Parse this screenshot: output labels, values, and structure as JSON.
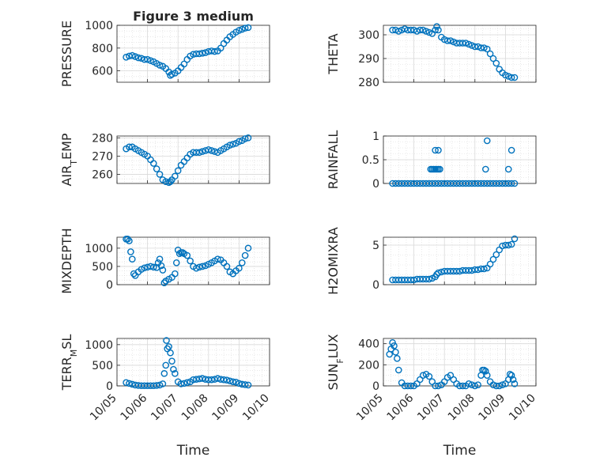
{
  "title": "Figure 3 medium",
  "x_axis_label": "Time",
  "chart_data": [
    {
      "type": "scatter",
      "ylabel": "PRESSURE",
      "title": "Figure 3 medium",
      "xlim": [
        "10/05",
        "10/10"
      ],
      "ylim": [
        500,
        1000
      ],
      "yticks": [
        600,
        800,
        1000
      ],
      "grid": true,
      "marker": "open-circle",
      "color": "#0072BD",
      "series": [
        {
          "x": [
            5.3,
            5.4,
            5.5,
            5.6,
            5.7,
            5.8,
            5.9,
            6.0,
            6.1,
            6.2,
            6.3,
            6.4,
            6.5,
            6.6,
            6.7,
            6.75,
            6.8,
            6.9,
            7.0,
            7.1,
            7.2,
            7.3,
            7.4,
            7.5,
            7.6,
            7.7,
            7.8,
            7.9,
            8.0,
            8.1,
            8.2,
            8.3,
            8.4,
            8.5,
            8.6,
            8.7,
            8.8,
            8.9,
            9.0,
            9.1,
            9.2,
            9.3
          ],
          "y": [
            720,
            730,
            735,
            725,
            715,
            710,
            700,
            700,
            690,
            680,
            665,
            650,
            640,
            620,
            590,
            560,
            570,
            580,
            600,
            630,
            660,
            700,
            730,
            745,
            750,
            750,
            755,
            760,
            770,
            775,
            770,
            775,
            800,
            840,
            870,
            900,
            920,
            940,
            955,
            965,
            975,
            980
          ]
        }
      ]
    },
    {
      "type": "scatter",
      "ylabel": "THETA",
      "xlim": [
        "10/05",
        "10/10"
      ],
      "ylim": [
        280,
        304
      ],
      "yticks": [
        280,
        290,
        300
      ],
      "grid": true,
      "marker": "open-circle",
      "color": "#0072BD",
      "series": [
        {
          "x": [
            5.3,
            5.4,
            5.5,
            5.6,
            5.7,
            5.8,
            5.9,
            6.0,
            6.1,
            6.2,
            6.3,
            6.4,
            6.5,
            6.6,
            6.7,
            6.75,
            6.8,
            6.9,
            7.0,
            7.1,
            7.2,
            7.3,
            7.4,
            7.5,
            7.6,
            7.7,
            7.8,
            7.9,
            8.0,
            8.1,
            8.2,
            8.3,
            8.4,
            8.5,
            8.6,
            8.7,
            8.8,
            8.9,
            9.0,
            9.1,
            9.2,
            9.3
          ],
          "y": [
            302,
            302,
            301.5,
            302,
            302.5,
            302,
            302,
            302,
            301.5,
            302,
            302,
            301.5,
            301,
            300.5,
            302,
            303.5,
            302,
            299,
            298,
            297.5,
            297.5,
            297,
            296.5,
            296.5,
            296.5,
            296.5,
            296,
            295.5,
            295,
            295,
            294.5,
            294.5,
            294,
            292,
            290,
            288,
            285.5,
            284,
            283,
            282.5,
            282,
            282
          ]
        }
      ]
    },
    {
      "type": "scatter",
      "ylabel": "AIR_TEMP",
      "xlim": [
        "10/05",
        "10/10"
      ],
      "ylim": [
        255,
        281
      ],
      "yticks": [
        260,
        270,
        280
      ],
      "grid": true,
      "marker": "open-circle",
      "color": "#0072BD",
      "series": [
        {
          "x": [
            5.3,
            5.4,
            5.5,
            5.6,
            5.7,
            5.8,
            5.9,
            6.0,
            6.1,
            6.2,
            6.3,
            6.4,
            6.5,
            6.6,
            6.7,
            6.75,
            6.8,
            6.9,
            7.0,
            7.1,
            7.2,
            7.3,
            7.4,
            7.5,
            7.6,
            7.7,
            7.8,
            7.9,
            8.0,
            8.1,
            8.2,
            8.3,
            8.4,
            8.5,
            8.6,
            8.7,
            8.8,
            8.9,
            9.0,
            9.1,
            9.2,
            9.3
          ],
          "y": [
            274,
            275,
            275,
            274,
            273,
            272,
            271,
            270,
            268,
            266,
            263,
            260,
            257,
            256,
            255.5,
            256,
            257,
            259,
            262,
            265,
            267,
            269,
            271,
            272,
            272,
            272,
            272.5,
            273,
            273.5,
            273,
            272.5,
            272,
            273,
            274,
            275,
            276,
            276.5,
            277,
            278,
            278.5,
            279.5,
            280
          ]
        }
      ]
    },
    {
      "type": "scatter",
      "ylabel": "RAINFALL",
      "xlim": [
        "10/05",
        "10/10"
      ],
      "ylim": [
        0,
        1
      ],
      "yticks": [
        0,
        0.5,
        1
      ],
      "grid": true,
      "marker": "open-circle",
      "color": "#0072BD",
      "series": [
        {
          "x": [
            5.3,
            5.4,
            5.5,
            5.6,
            5.7,
            5.8,
            5.9,
            6.0,
            6.1,
            6.2,
            6.3,
            6.4,
            6.5,
            6.6,
            6.7,
            6.8,
            6.9,
            7.0,
            7.1,
            7.2,
            7.3,
            7.4,
            7.5,
            7.6,
            7.7,
            7.8,
            7.9,
            8.0,
            8.1,
            8.2,
            8.3,
            8.4,
            8.5,
            8.6,
            8.7,
            8.8,
            8.9,
            9.0,
            9.1,
            9.2,
            9.3,
            6.55,
            6.6,
            6.65,
            6.7,
            6.75,
            6.8,
            6.85,
            6.7,
            6.8,
            8.35,
            8.4,
            9.1,
            9.2
          ],
          "y": [
            0,
            0,
            0,
            0,
            0,
            0,
            0,
            0,
            0,
            0,
            0,
            0,
            0,
            0,
            0,
            0,
            0,
            0,
            0,
            0,
            0,
            0,
            0,
            0,
            0,
            0,
            0,
            0,
            0,
            0,
            0,
            0,
            0,
            0,
            0,
            0,
            0,
            0,
            0,
            0,
            0,
            0.3,
            0.3,
            0.3,
            0.3,
            0.3,
            0.3,
            0.3,
            0.7,
            0.7,
            0.3,
            0.9,
            0.3,
            0.7
          ]
        }
      ]
    },
    {
      "type": "scatter",
      "ylabel": "MIXDEPTH",
      "xlim": [
        "10/05",
        "10/10"
      ],
      "ylim": [
        0,
        1300
      ],
      "yticks": [
        0,
        500,
        1000
      ],
      "grid": true,
      "marker": "open-circle",
      "color": "#0072BD",
      "series": [
        {
          "x": [
            5.3,
            5.35,
            5.4,
            5.45,
            5.5,
            5.55,
            5.6,
            5.7,
            5.8,
            5.9,
            6.0,
            6.1,
            6.2,
            6.3,
            6.35,
            6.4,
            6.45,
            6.5,
            6.55,
            6.6,
            6.7,
            6.8,
            6.9,
            6.95,
            7.0,
            7.05,
            7.1,
            7.15,
            7.2,
            7.3,
            7.4,
            7.5,
            7.6,
            7.7,
            7.8,
            7.9,
            8.0,
            8.1,
            8.2,
            8.3,
            8.4,
            8.5,
            8.6,
            8.7,
            8.8,
            8.9,
            9.0,
            9.1,
            9.2,
            9.3
          ],
          "y": [
            1250,
            1250,
            1200,
            900,
            700,
            300,
            250,
            350,
            420,
            460,
            480,
            500,
            480,
            470,
            600,
            700,
            520,
            400,
            50,
            100,
            150,
            200,
            300,
            600,
            950,
            850,
            880,
            880,
            850,
            800,
            650,
            500,
            450,
            480,
            500,
            520,
            560,
            600,
            650,
            700,
            680,
            600,
            500,
            350,
            300,
            380,
            450,
            600,
            800,
            1000
          ]
        }
      ]
    },
    {
      "type": "scatter",
      "ylabel": "H2OMIXRA",
      "xlim": [
        "10/05",
        "10/10"
      ],
      "ylim": [
        0,
        6
      ],
      "yticks": [
        0,
        5
      ],
      "grid": true,
      "marker": "open-circle",
      "color": "#0072BD",
      "series": [
        {
          "x": [
            5.3,
            5.4,
            5.5,
            5.6,
            5.7,
            5.8,
            5.9,
            6.0,
            6.1,
            6.2,
            6.3,
            6.4,
            6.5,
            6.6,
            6.7,
            6.75,
            6.8,
            6.9,
            7.0,
            7.1,
            7.2,
            7.3,
            7.4,
            7.5,
            7.6,
            7.7,
            7.8,
            7.9,
            8.0,
            8.1,
            8.2,
            8.3,
            8.4,
            8.5,
            8.6,
            8.7,
            8.8,
            8.9,
            9.0,
            9.1,
            9.2,
            9.3
          ],
          "y": [
            0.6,
            0.6,
            0.6,
            0.6,
            0.6,
            0.6,
            0.6,
            0.6,
            0.7,
            0.7,
            0.7,
            0.7,
            0.7,
            0.8,
            1.0,
            1.3,
            1.5,
            1.6,
            1.7,
            1.7,
            1.7,
            1.7,
            1.7,
            1.7,
            1.8,
            1.8,
            1.8,
            1.8,
            1.9,
            1.9,
            2.0,
            2.0,
            2.1,
            2.6,
            3.2,
            3.8,
            4.4,
            4.9,
            5.0,
            5.0,
            5.1,
            5.8
          ]
        }
      ]
    },
    {
      "type": "scatter",
      "ylabel": "TERR_MSL",
      "xlim": [
        "10/05",
        "10/10"
      ],
      "ylim": [
        0,
        1150
      ],
      "yticks": [
        0,
        500,
        1000
      ],
      "grid": true,
      "marker": "open-circle",
      "color": "#0072BD",
      "series": [
        {
          "x": [
            5.3,
            5.4,
            5.5,
            5.6,
            5.7,
            5.8,
            5.9,
            6.0,
            6.1,
            6.2,
            6.3,
            6.4,
            6.5,
            6.55,
            6.6,
            6.62,
            6.65,
            6.7,
            6.75,
            6.8,
            6.85,
            6.9,
            7.0,
            7.1,
            7.2,
            7.3,
            7.4,
            7.5,
            7.6,
            7.7,
            7.8,
            7.9,
            8.0,
            8.1,
            8.2,
            8.3,
            8.4,
            8.5,
            8.6,
            8.7,
            8.8,
            8.9,
            9.0,
            9.1,
            9.2,
            9.3
          ],
          "y": [
            80,
            60,
            40,
            20,
            10,
            5,
            5,
            5,
            5,
            5,
            10,
            20,
            50,
            300,
            500,
            1100,
            900,
            950,
            800,
            600,
            400,
            300,
            100,
            50,
            60,
            80,
            100,
            150,
            160,
            170,
            180,
            160,
            150,
            150,
            160,
            180,
            160,
            150,
            140,
            120,
            100,
            90,
            60,
            40,
            30,
            20
          ]
        }
      ]
    },
    {
      "type": "scatter",
      "ylabel": "SUN_FLUX",
      "xlim": [
        "10/05",
        "10/10"
      ],
      "ylim": [
        0,
        450
      ],
      "yticks": [
        0,
        200,
        400
      ],
      "grid": true,
      "marker": "open-circle",
      "color": "#0072BD",
      "series": [
        {
          "x": [
            5.2,
            5.25,
            5.3,
            5.35,
            5.4,
            5.45,
            5.5,
            5.6,
            5.7,
            5.8,
            5.9,
            6.0,
            6.1,
            6.2,
            6.3,
            6.4,
            6.5,
            6.6,
            6.7,
            6.8,
            6.9,
            7.0,
            7.1,
            7.2,
            7.3,
            7.4,
            7.5,
            7.6,
            7.7,
            7.8,
            7.9,
            8.0,
            8.1,
            8.2,
            8.25,
            8.3,
            8.35,
            8.4,
            8.5,
            8.6,
            8.7,
            8.8,
            8.9,
            9.0,
            9.1,
            9.15,
            9.2,
            9.25,
            9.3
          ],
          "y": [
            300,
            350,
            410,
            380,
            320,
            260,
            150,
            30,
            0,
            0,
            0,
            0,
            20,
            60,
            100,
            110,
            90,
            40,
            0,
            0,
            10,
            40,
            80,
            100,
            60,
            20,
            0,
            0,
            0,
            20,
            10,
            0,
            10,
            100,
            150,
            150,
            140,
            100,
            40,
            10,
            0,
            0,
            10,
            20,
            60,
            110,
            100,
            60,
            20
          ]
        }
      ]
    }
  ],
  "x_ticks": [
    "10/05",
    "10/06",
    "10/07",
    "10/08",
    "10/09",
    "10/10"
  ],
  "colors": {
    "marker": "#0072BD",
    "grid": "#d9d9d9",
    "axis": "#262626"
  }
}
